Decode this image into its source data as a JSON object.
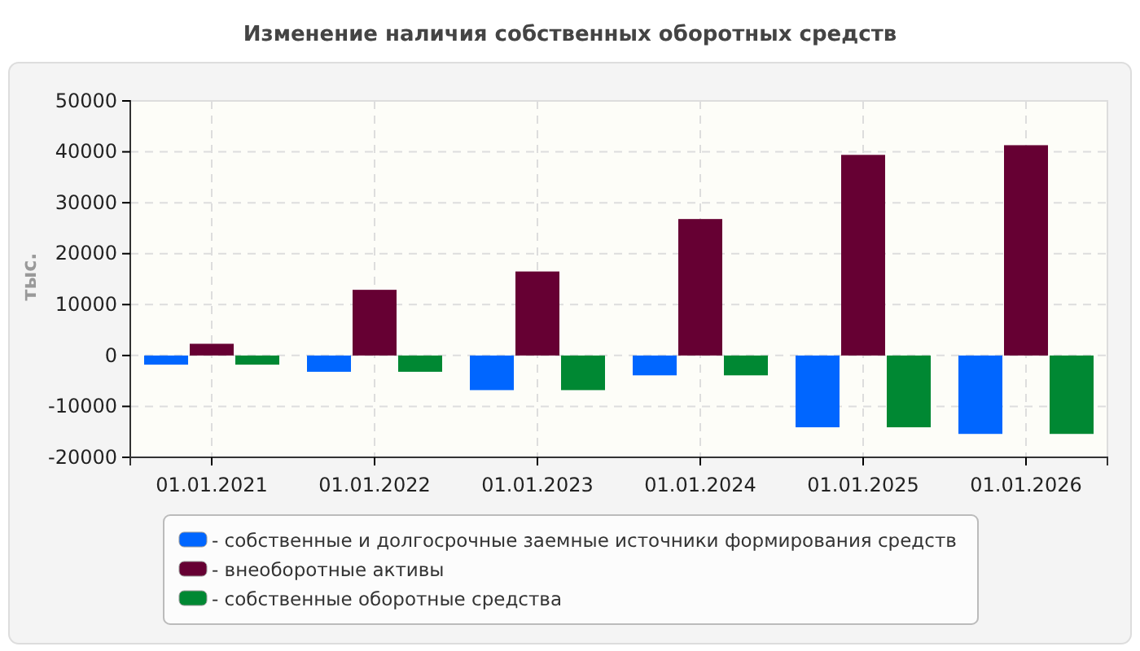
{
  "chart_data": {
    "type": "bar",
    "title": "Изменение наличия собственных оборотных средств",
    "ylabel": "тыс.",
    "categories": [
      "01.01.2021",
      "01.01.2022",
      "01.01.2023",
      "01.01.2024",
      "01.01.2025",
      "01.01.2026"
    ],
    "series": [
      {
        "name": "- собственные и долгосрочные заемные источники формирования средств",
        "color": "#0066ff",
        "values": [
          -1800,
          -3200,
          -6800,
          -3900,
          -14100,
          -15400
        ]
      },
      {
        "name": "- внеоборотные активы",
        "color": "#660033",
        "values": [
          2300,
          12900,
          16500,
          26800,
          39400,
          41300
        ]
      },
      {
        "name": "- собственные оборотные средства",
        "color": "#008833",
        "values": [
          -1800,
          -3200,
          -6800,
          -3900,
          -14100,
          -15400
        ]
      }
    ],
    "ylim": [
      -20000,
      50000
    ],
    "yticks": [
      -20000,
      -10000,
      0,
      10000,
      20000,
      30000,
      40000,
      50000
    ],
    "grid": true,
    "legend": "bottom"
  }
}
